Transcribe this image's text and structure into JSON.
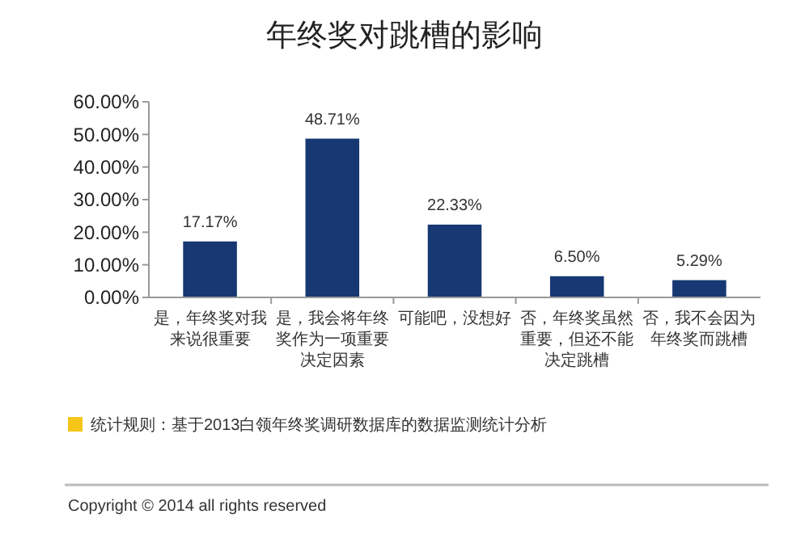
{
  "chart_data": {
    "type": "bar",
    "title": "年终奖对跳槽的影响",
    "categories": [
      "是，年终奖对我来说很重要",
      "是，我会将年终奖作为一项重要决定因素",
      "可能吧，没想好",
      "否，年终奖虽然重要，但还不能决定跳槽",
      "否，我不会因为年终奖而跳槽"
    ],
    "values": [
      17.17,
      48.71,
      22.33,
      6.5,
      5.29
    ],
    "value_labels": [
      "17.17%",
      "48.71%",
      "22.33%",
      "6.50%",
      "5.29%"
    ],
    "color": "#173872",
    "ylim": [
      0,
      60
    ],
    "yticks": [
      {
        "value": 0,
        "label": "0.00%"
      },
      {
        "value": 10,
        "label": "10.00%"
      },
      {
        "value": 20,
        "label": "20.00%"
      },
      {
        "value": 30,
        "label": "30.00%"
      },
      {
        "value": 40,
        "label": "40.00%"
      },
      {
        "value": 50,
        "label": "50.00%"
      },
      {
        "value": 60,
        "label": "60.00%"
      }
    ],
    "grid": false,
    "annotations": [
      "统计规则：基于2013白领年终奖调研数据库的数据监测统计分析",
      "Copyright © 2014 all rights reserved"
    ]
  }
}
